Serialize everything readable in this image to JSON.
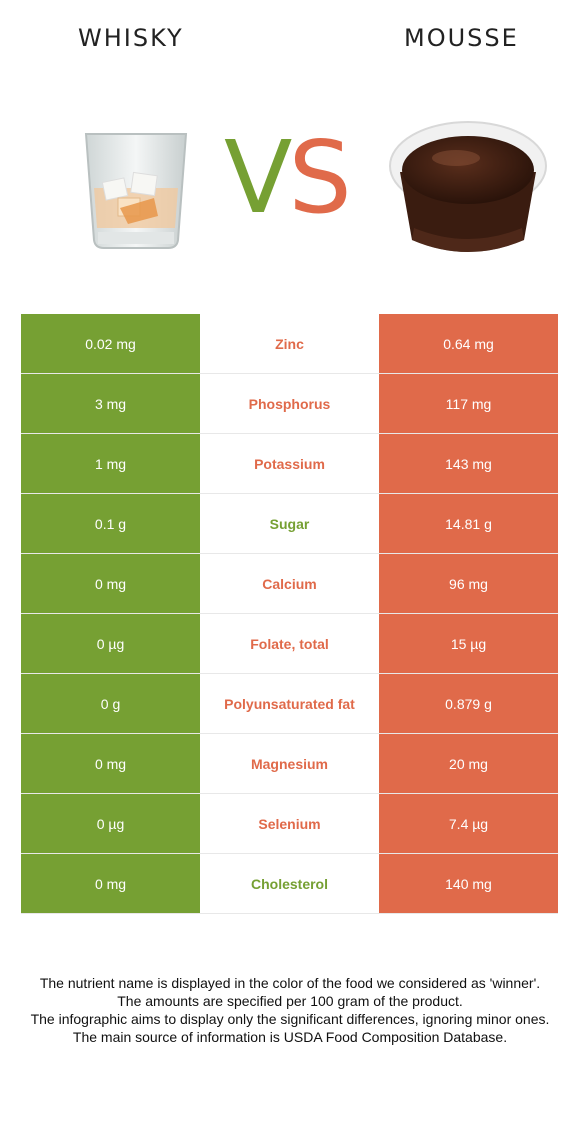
{
  "header": {
    "left_food": "WHISKY",
    "right_food": "MOUSSE",
    "vs_v": "V",
    "vs_s": "S"
  },
  "colors": {
    "winner_left": "#76a033",
    "winner_right": "#e06a4a"
  },
  "rows": [
    {
      "left": "0.02 mg",
      "nutrient": "Zinc",
      "right": "0.64 mg",
      "winner": "right"
    },
    {
      "left": "3 mg",
      "nutrient": "Phosphorus",
      "right": "117 mg",
      "winner": "right"
    },
    {
      "left": "1 mg",
      "nutrient": "Potassium",
      "right": "143 mg",
      "winner": "right"
    },
    {
      "left": "0.1 g",
      "nutrient": "Sugar",
      "right": "14.81 g",
      "winner": "left"
    },
    {
      "left": "0 mg",
      "nutrient": "Calcium",
      "right": "96 mg",
      "winner": "right"
    },
    {
      "left": "0 µg",
      "nutrient": "Folate, total",
      "right": "15 µg",
      "winner": "right"
    },
    {
      "left": "0 g",
      "nutrient": "Polyunsaturated fat",
      "right": "0.879 g",
      "winner": "right"
    },
    {
      "left": "0 mg",
      "nutrient": "Magnesium",
      "right": "20 mg",
      "winner": "right"
    },
    {
      "left": "0 µg",
      "nutrient": "Selenium",
      "right": "7.4 µg",
      "winner": "right"
    },
    {
      "left": "0 mg",
      "nutrient": "Cholesterol",
      "right": "140 mg",
      "winner": "left"
    }
  ],
  "notes": [
    "The nutrient name is displayed in the color of the food we considered as 'winner'.",
    "The amounts are specified per 100 gram of the product.",
    "The infographic aims to display only the significant differences, ignoring minor ones.",
    "The main source of information is USDA Food Composition Database."
  ]
}
